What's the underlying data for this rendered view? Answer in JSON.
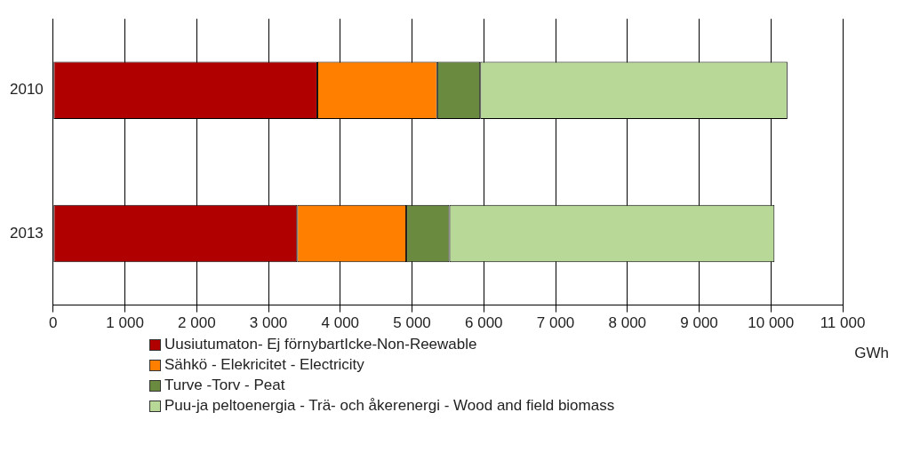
{
  "chart_data": {
    "type": "bar",
    "orientation": "horizontal",
    "stacked": true,
    "categories": [
      "2010",
      "2013"
    ],
    "series": [
      {
        "name": "Uusiutumaton- Ej förnybartIcke-Non-Reewable",
        "color": "#b00000",
        "values": [
          3680,
          3400
        ]
      },
      {
        "name": "Sähkö - Elekricitet - Electricity",
        "color": "#ff8000",
        "values": [
          1670,
          1520
        ]
      },
      {
        "name": "Turve -Torv - Peat",
        "color": "#6a8a40",
        "values": [
          600,
          600
        ]
      },
      {
        "name": "Puu-ja peltoenergia - Trä- och åkerenergi - Wood and field biomass",
        "color": "#b8d898",
        "values": [
          4280,
          4530
        ]
      }
    ],
    "xlim": [
      0,
      11000
    ],
    "xticks": [
      0,
      {
        "value": 1000,
        "label": "1 000"
      },
      {
        "value": 2000,
        "label": "2 000"
      },
      {
        "value": 3000,
        "label": "3 000"
      },
      {
        "value": 4000,
        "label": "4 000"
      },
      {
        "value": 5000,
        "label": "5 000"
      },
      {
        "value": 6000,
        "label": "6 000"
      },
      {
        "value": 7000,
        "label": "7 000"
      },
      {
        "value": 8000,
        "label": "8 000"
      },
      {
        "value": 9000,
        "label": "9 000"
      },
      {
        "value": 10000,
        "label": "10 000"
      },
      {
        "value": 11000,
        "label": "11 000"
      }
    ],
    "xlabel": "GWh",
    "grid": "x",
    "legend": "bottom"
  }
}
